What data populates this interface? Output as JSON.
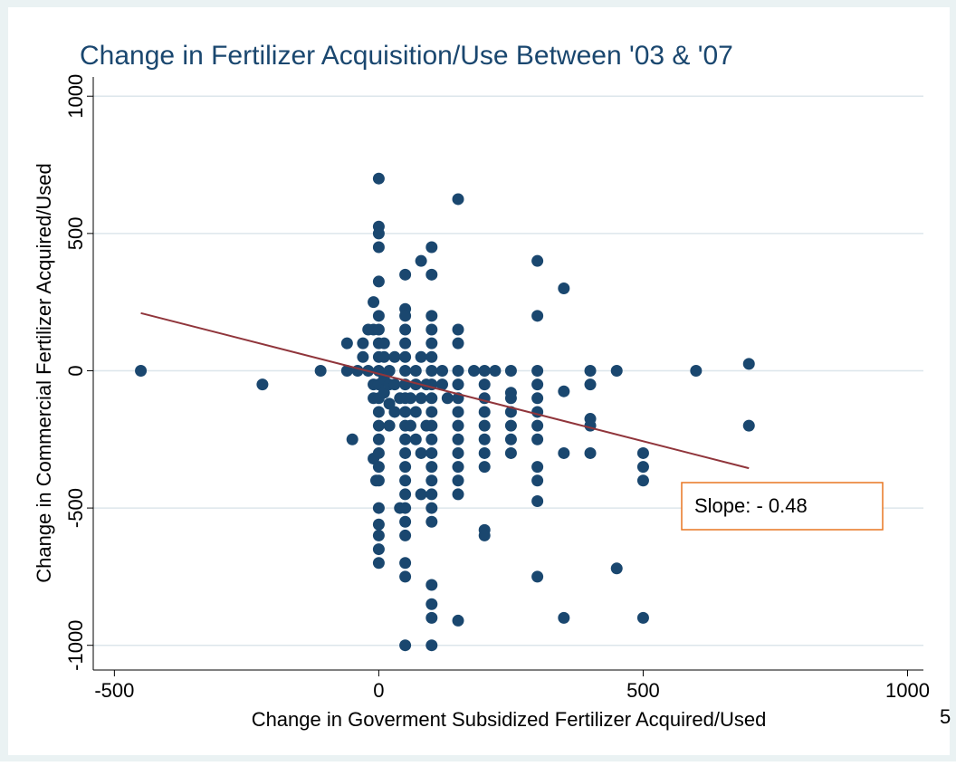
{
  "chart_data": {
    "type": "scatter",
    "title": "Change in Fertilizer Acquisition/Use Between '03 & '07",
    "x_label": "Change in Goverment Subsidized Fertilizer Acquired/Used",
    "y_label": "Change in Commercial Fertilizer Acquired/Used",
    "annotation": "Slope: - 0.48",
    "clipped_text": "5",
    "xlim": [
      -540,
      1030
    ],
    "ylim": [
      -1090,
      1070
    ],
    "xticks": [
      -500,
      0,
      500,
      1000
    ],
    "yticks": [
      -1000,
      -500,
      0,
      500,
      1000
    ],
    "grid": true,
    "series": [
      {
        "color": "#1a476f",
        "x": [
          -450,
          -220,
          -110,
          -60,
          -60,
          -50,
          -40,
          -30,
          -30,
          -20,
          -20,
          -10,
          -10,
          -10,
          -10,
          -10,
          -5,
          0,
          0,
          0,
          0,
          0,
          0,
          0,
          0,
          0,
          0,
          0,
          0,
          0,
          0,
          0,
          0,
          0,
          0,
          0,
          0,
          0,
          0,
          0,
          10,
          10,
          10,
          10,
          20,
          20,
          20,
          20,
          30,
          30,
          30,
          40,
          40,
          50,
          50,
          50,
          50,
          50,
          50,
          50,
          50,
          50,
          50,
          50,
          50,
          50,
          50,
          50,
          50,
          50,
          50,
          50,
          50,
          50,
          50,
          60,
          60,
          70,
          70,
          70,
          70,
          80,
          80,
          80,
          80,
          80,
          90,
          90,
          100,
          100,
          100,
          100,
          100,
          100,
          100,
          100,
          100,
          100,
          100,
          100,
          100,
          100,
          100,
          100,
          100,
          100,
          100,
          100,
          100,
          100,
          120,
          120,
          130,
          150,
          150,
          150,
          150,
          150,
          150,
          150,
          150,
          150,
          150,
          150,
          150,
          150,
          150,
          180,
          200,
          200,
          200,
          200,
          200,
          200,
          200,
          200,
          200,
          200,
          220,
          250,
          250,
          250,
          250,
          250,
          250,
          250,
          300,
          300,
          300,
          300,
          300,
          300,
          300,
          300,
          300,
          300,
          300,
          300,
          350,
          350,
          350,
          350,
          400,
          400,
          400,
          400,
          400,
          450,
          450,
          500,
          500,
          500,
          500,
          600,
          700,
          700
        ],
        "values": [
          0,
          -50,
          0,
          100,
          0,
          -250,
          0,
          100,
          50,
          0,
          150,
          250,
          150,
          -50,
          -100,
          -320,
          -400,
          700,
          525,
          500,
          450,
          325,
          200,
          150,
          100,
          50,
          0,
          -50,
          -100,
          -150,
          -200,
          -250,
          -300,
          -350,
          -400,
          -500,
          -560,
          -600,
          -650,
          -700,
          100,
          50,
          -30,
          -80,
          0,
          -50,
          -120,
          -200,
          50,
          -50,
          -150,
          -100,
          -500,
          350,
          225,
          200,
          150,
          100,
          50,
          0,
          -50,
          -100,
          -150,
          -200,
          -250,
          -300,
          -350,
          -400,
          -450,
          -500,
          -550,
          -600,
          -700,
          -750,
          -1000,
          -100,
          -200,
          0,
          -50,
          -150,
          -250,
          400,
          50,
          -100,
          -300,
          -450,
          -50,
          -200,
          450,
          350,
          200,
          150,
          100,
          50,
          0,
          -50,
          -100,
          -150,
          -200,
          -250,
          -300,
          -350,
          -400,
          -450,
          -500,
          -550,
          -780,
          -850,
          -900,
          -1000,
          0,
          -50,
          -100,
          625,
          150,
          100,
          0,
          -50,
          -100,
          -150,
          -200,
          -250,
          -300,
          -350,
          -400,
          -450,
          -910,
          0,
          0,
          -50,
          -100,
          -150,
          -200,
          -250,
          -300,
          -350,
          -580,
          -600,
          0,
          0,
          -80,
          -100,
          -150,
          -200,
          -250,
          -300,
          400,
          200,
          0,
          -50,
          -100,
          -150,
          -200,
          -250,
          -350,
          -400,
          -475,
          -750,
          300,
          -75,
          -300,
          -900,
          0,
          -50,
          -175,
          -200,
          -300,
          0,
          -720,
          -300,
          -350,
          -400,
          -900,
          0,
          25,
          -200
        ]
      }
    ],
    "fit": {
      "color": "#90353b",
      "x": [
        -450,
        700
      ],
      "values": [
        210,
        -355
      ]
    }
  }
}
